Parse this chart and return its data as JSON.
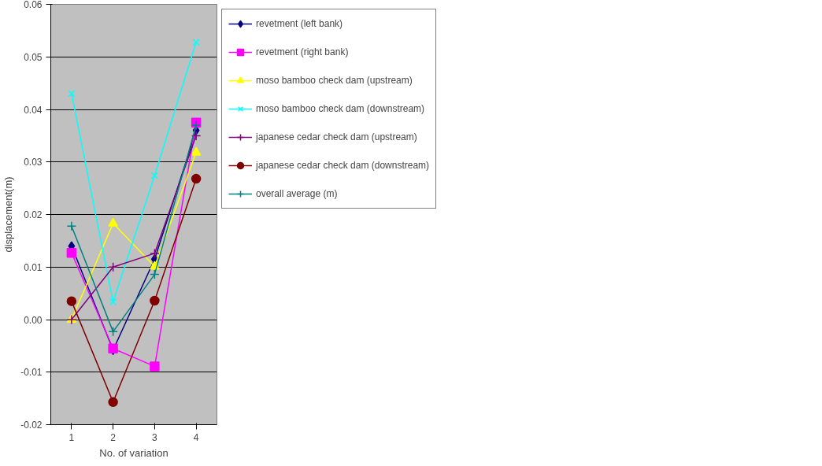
{
  "chart_data": {
    "type": "line",
    "xlabel": "No. of variation",
    "ylabel": "displacement(m)",
    "categories": [
      "1",
      "2",
      "3",
      "4"
    ],
    "ylim": [
      -0.02,
      0.06
    ],
    "yticks": [
      {
        "value": -0.02,
        "label": "-0.02"
      },
      {
        "value": -0.01,
        "label": "-0.01"
      },
      {
        "value": 0,
        "label": "0.00"
      },
      {
        "value": 0.01,
        "label": "0.01"
      },
      {
        "value": 0.02,
        "label": "0.02"
      },
      {
        "value": 0.03,
        "label": "0.03"
      },
      {
        "value": 0.04,
        "label": "0.04"
      },
      {
        "value": 0.05,
        "label": "0.05"
      },
      {
        "value": 0.06,
        "label": "0.06"
      }
    ],
    "grid": "y",
    "legend": "right",
    "series": [
      {
        "name": "revetment (left bank)",
        "color": "#000080",
        "marker": "diamond",
        "values": [
          0.014,
          -0.0058,
          0.0115,
          0.036
        ]
      },
      {
        "name": "revetment (right bank)",
        "color": "#ff00ff",
        "marker": "square",
        "values": [
          0.0127,
          -0.0055,
          -0.0089,
          0.0375
        ]
      },
      {
        "name": "moso bamboo check dam (upstream)",
        "color": "#ffff00",
        "marker": "triangle",
        "values": [
          0.0,
          0.0183,
          0.0101,
          0.0318
        ]
      },
      {
        "name": "moso bamboo check dam (downstream)",
        "color": "#00ffff",
        "marker": "x",
        "values": [
          0.043,
          0.0034,
          0.0274,
          0.0528
        ]
      },
      {
        "name": "japanese cedar check dam (upstream)",
        "color": "#800080",
        "marker": "cross",
        "values": [
          0.0,
          0.01,
          0.0126,
          0.035
        ]
      },
      {
        "name": "japanese cedar check dam (downstream)",
        "color": "#800000",
        "marker": "circle",
        "values": [
          0.0035,
          -0.0157,
          0.0036,
          0.0268
        ]
      },
      {
        "name": "overall average (m)",
        "color": "#008080",
        "marker": "cross",
        "values": [
          0.0178,
          -0.0023,
          0.0086,
          0.037
        ]
      }
    ]
  }
}
